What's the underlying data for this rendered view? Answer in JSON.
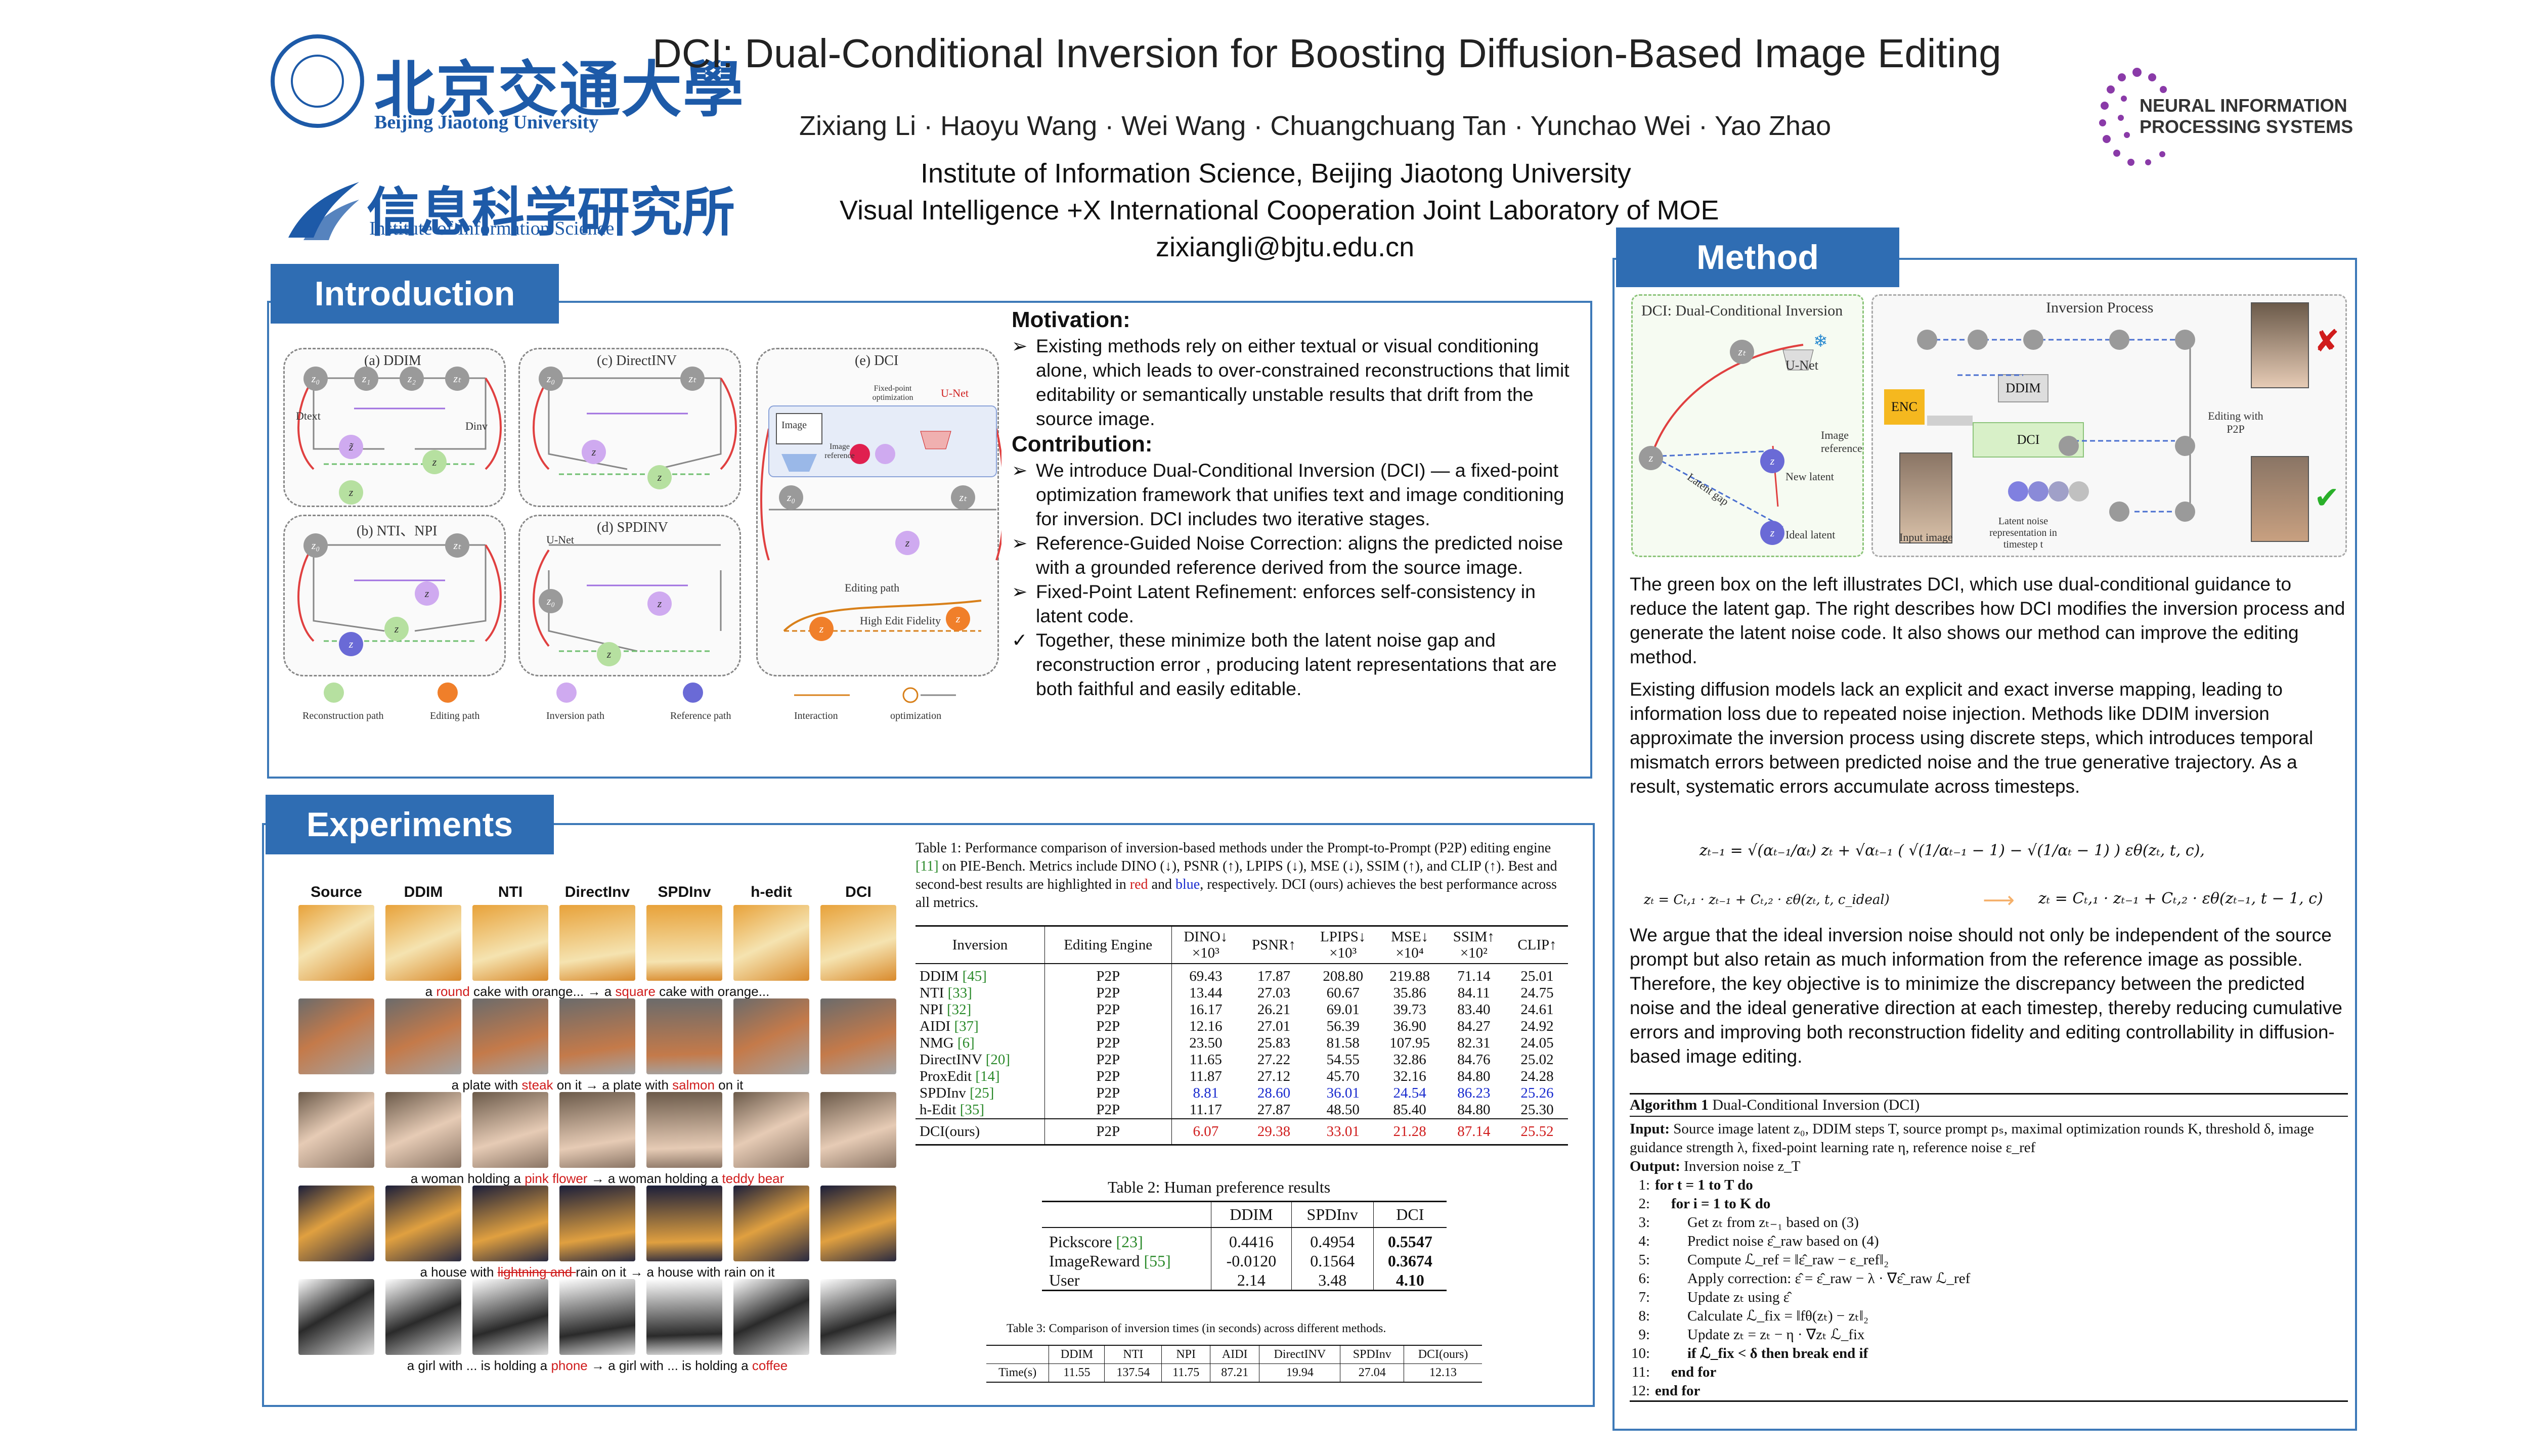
{
  "header": {
    "title": "DCI: Dual-Conditional Inversion for Boosting Diffusion-Based Image Editing",
    "authors": "Zixiang Li · Haoyu Wang · Wei Wang · Chuangchuang Tan · Yunchao Wei · Yao Zhao",
    "affiliation1": "Institute of Information Science, Beijing Jiaotong University",
    "affiliation2": "Visual Intelligence +X International Cooperation Joint Laboratory of MOE",
    "email": "zixiangli@bjtu.edu.cn",
    "logo_bjtu_cn": "北京交通大學",
    "logo_bjtu_en": "Beijing Jiaotong University",
    "logo_iis_cn": "信息科学研究所",
    "logo_iis_en": "Institute of Information Science",
    "logo_neurips_1": "NEURAL INFORMATION",
    "logo_neurips_2": "PROCESSING SYSTEMS"
  },
  "colors": {
    "accent": "#2f6db3",
    "border": "#3d79b8",
    "red": "#d01c1c",
    "blue": "#1a2ccf"
  },
  "introduction": {
    "heading": "Introduction",
    "fig": {
      "a": "(a) DDIM",
      "b": "(b) NTI、NPI",
      "c": "(c) DirectINV",
      "d": "(d) SPDINV",
      "e": "(e) DCI",
      "dtext": "Dtext",
      "dinv": "Dinv",
      "unet": "U-Net",
      "image": "Image",
      "fixed": "Fixed-point optimization",
      "image_ref": "Image reference",
      "edit_path": "Editing path",
      "fidelity": "High Edit Fidelity",
      "legend": [
        "Reconstruction path",
        "Editing path",
        "Inversion path",
        "Reference path",
        "Interaction",
        "optimization"
      ]
    },
    "motivation_title": "Motivation:",
    "motivation": "Existing methods rely on either textual or visual conditioning alone, which leads to over-constrained reconstructions that limit editability or semantically unstable results that drift from the source image.",
    "contribution_title": "Contribution:",
    "contrib": [
      "We introduce Dual-Conditional Inversion (DCI) — a fixed-point optimization framework that unifies text and image conditioning for  inversion. DCI includes two iterative stages.",
      "Reference-Guided Noise Correction: aligns the predicted noise with a grounded reference derived from the source image.",
      "Fixed-Point Latent Refinement: enforces self-consistency in latent code.",
      "Together, these minimize both the latent noise gap and reconstruction error , producing latent representations that are both faithful and easily editable."
    ]
  },
  "experiments": {
    "heading": "Experiments",
    "columns": [
      "Source",
      "DDIM",
      "NTI",
      "DirectInv",
      "SPDInv",
      "h-edit",
      "DCI"
    ],
    "rows": [
      {
        "c": [
          "a ",
          "round",
          " cake with orange... → a ",
          "square",
          " cake with orange..."
        ],
        "colors": [
          "#e8a23a",
          "#f5e3b0",
          "#d98a2c"
        ]
      },
      {
        "c": [
          "a plate with ",
          "steak",
          " on it  → a plate with ",
          "salmon",
          " on it"
        ],
        "colors": [
          "#6b6b6b",
          "#c47a4a",
          "#a4a4a4"
        ]
      },
      {
        "c": [
          "a woman holding a ",
          "pink flower",
          " → a woman holding a ",
          "teddy bear",
          ""
        ],
        "colors": [
          "#6b5a4a",
          "#e6cbb5",
          "#8a7565"
        ]
      },
      {
        "c": [
          "a house with ",
          "lightning and ",
          "rain on it → a house with rain on it",
          "",
          ""
        ],
        "colors": [
          "#1a1e3a",
          "#e0a040",
          "#2a2a40"
        ]
      },
      {
        "c": [
          "a girl with ... is holding a ",
          "phone",
          " → a girl with ... is holding a ",
          "coffee",
          ""
        ],
        "colors": [
          "#ffffff",
          "#2a2a2a",
          "#dddddd"
        ]
      }
    ],
    "table1": {
      "caption_pre": "Table 1: Performance comparison of inversion-based methods under the Prompt-to-Prompt (P2P) editing engine ",
      "caption_ref": "[11]",
      "caption_mid": " on PIE-Bench. Metrics include DINO (↓), PSNR (↑), LPIPS (↓), MSE (↓), SSIM (↑), and CLIP (↑). Best and second-best results are highlighted in ",
      "caption_red": "red",
      "caption_and": " and ",
      "caption_blue": "blue",
      "caption_post": ", respectively. DCI (ours) achieves the best performance across all metrics.",
      "headers": [
        "Inversion",
        "Editing Engine",
        "DINO↓",
        "PSNR↑",
        "LPIPS↓",
        "MSE↓",
        "SSIM↑",
        "CLIP↑"
      ],
      "subheaders": [
        "",
        "",
        "×10³",
        "",
        "×10³",
        "×10⁴",
        "×10²",
        ""
      ],
      "rows": [
        {
          "name": "DDIM",
          "ref": "[45]",
          "v": [
            "P2P",
            "69.43",
            "17.87",
            "208.80",
            "219.88",
            "71.14",
            "25.01"
          ]
        },
        {
          "name": "NTI",
          "ref": "[33]",
          "v": [
            "P2P",
            "13.44",
            "27.03",
            "60.67",
            "35.86",
            "84.11",
            "24.75"
          ]
        },
        {
          "name": "NPI",
          "ref": "[32]",
          "v": [
            "P2P",
            "16.17",
            "26.21",
            "69.01",
            "39.73",
            "83.40",
            "24.61"
          ]
        },
        {
          "name": "AIDI",
          "ref": "[37]",
          "v": [
            "P2P",
            "12.16",
            "27.01",
            "56.39",
            "36.90",
            "84.27",
            "24.92"
          ]
        },
        {
          "name": "NMG",
          "ref": "[6]",
          "v": [
            "P2P",
            "23.50",
            "25.83",
            "81.58",
            "107.95",
            "82.31",
            "24.05"
          ]
        },
        {
          "name": "DirectINV",
          "ref": "[20]",
          "v": [
            "P2P",
            "11.65",
            "27.22",
            "54.55",
            "32.86",
            "84.76",
            "25.02"
          ]
        },
        {
          "name": "ProxEdit",
          "ref": "[14]",
          "v": [
            "P2P",
            "11.87",
            "27.12",
            "45.70",
            "32.16",
            "84.80",
            "24.28"
          ]
        },
        {
          "name": "SPDInv",
          "ref": "[25]",
          "v": [
            "P2P",
            "8.81",
            "28.60",
            "36.01",
            "24.54",
            "86.23",
            "25.26"
          ]
        },
        {
          "name": "h-Edit",
          "ref": "[35]",
          "v": [
            "P2P",
            "11.17",
            "27.87",
            "48.50",
            "85.40",
            "84.80",
            "25.30"
          ]
        }
      ],
      "ours": {
        "name": "DCI(ours)",
        "v": [
          "P2P",
          "6.07",
          "29.38",
          "33.01",
          "21.28",
          "87.14",
          "25.52"
        ]
      }
    },
    "table2": {
      "caption": "Table 2: Human preference results",
      "headers": [
        "",
        "DDIM",
        "SPDInv",
        "DCI"
      ],
      "rows": [
        {
          "name": "Pickscore",
          "ref": "[23]",
          "v": [
            "0.4416",
            "0.4954",
            "0.5547"
          ]
        },
        {
          "name": "ImageReward",
          "ref": "[55]",
          "v": [
            "-0.0120",
            "0.1564",
            "0.3674"
          ]
        },
        {
          "name": "User",
          "ref": "",
          "v": [
            "2.14",
            "3.48",
            "4.10"
          ]
        }
      ]
    },
    "table3": {
      "caption": "Table 3: Comparison of inversion times (in seconds) across different methods.",
      "headers": [
        "",
        "DDIM",
        "NTI",
        "NPI",
        "AIDI",
        "DirectINV",
        "SPDInv",
        "DCI(ours)"
      ],
      "row": [
        "Time(s)",
        "11.55",
        "137.54",
        "11.75",
        "87.21",
        "19.94",
        "27.04",
        "12.13"
      ]
    }
  },
  "method": {
    "heading": "Method",
    "fig": {
      "left_title": "DCI: Dual-Conditional Inversion",
      "unet": "U-Net",
      "image_ref": "Image reference",
      "new_latent": "New latent",
      "latent_gap": "Latent gap",
      "ideal_latent": "Ideal latent",
      "right_title": "Inversion Process",
      "enc": "ENC",
      "ddim": "DDIM",
      "dci": "DCI",
      "input_image": "Input image",
      "latent_repr": "Latent noise representation in timestep t",
      "editing": "Editing with P2P"
    },
    "para1": "The green box on the left illustrates DCI, which use dual-conditional guidance to reduce the latent gap. The right describes how DCI modifies the inversion process and generate the latent noise code. It also shows our method can improve the editing method.",
    "para2": "Existing diffusion models lack an explicit and exact inverse mapping, leading to information loss due to repeated noise injection. Methods like DDIM inversion approximate the inversion process using discrete steps, which introduces temporal mismatch errors between predicted noise and the true generative trajectory. As a result, systematic errors accumulate across timesteps.",
    "eq1": "zₜ₋₁ = √(αₜ₋₁/αₜ) zₜ + √αₜ₋₁ ( √(1/αₜ₋₁ − 1) − √(1/αₜ − 1) ) εθ(zₜ, t, c),",
    "eq2_left": "zₜ = Cₜ,₁ · zₜ₋₁ + Cₜ,₂ · εθ(zₜ, t, c_ideal)",
    "eq2_right": "zₜ = Cₜ,₁ · zₜ₋₁ + Cₜ,₂ · εθ(zₜ₋₁, t − 1, c)",
    "para3": "We argue that the ideal inversion noise should not only be independent of the source prompt but also retain as much information from the reference image as possible. Therefore, the key objective is to minimize the discrepancy between the predicted noise and the ideal generative direction at each timestep, thereby reducing cumulative errors and improving both reconstruction fidelity and editing controllability in diffusion-based image editing.",
    "algo": {
      "title_b": "Algorithm 1",
      "title": " Dual-Conditional Inversion (DCI)",
      "input_b": "Input:",
      "input": " Source image latent z₀, DDIM steps T, source prompt pₛ, maximal optimization rounds K, threshold δ, image guidance strength λ, fixed-point learning rate η, reference noise ε_ref",
      "output_b": "Output:",
      "output": " Inversion noise z_T",
      "lines": [
        {
          "n": "1:",
          "ind": 1,
          "t": "for t = 1 to T do"
        },
        {
          "n": "2:",
          "ind": 2,
          "t": "for i = 1 to K do"
        },
        {
          "n": "3:",
          "ind": 3,
          "t": "Get zₜ from zₜ₋₁ based on (3)"
        },
        {
          "n": "4:",
          "ind": 3,
          "t": "Predict noise ε̂_raw based on (4)"
        },
        {
          "n": "5:",
          "ind": 3,
          "t": "Compute ℒ_ref = ‖ε̂_raw − ε_ref‖₂"
        },
        {
          "n": "6:",
          "ind": 3,
          "t": "Apply correction: ε̂ = ε̂_raw − λ · ∇ε̂_raw ℒ_ref"
        },
        {
          "n": "7:",
          "ind": 3,
          "t": "Update zₜ using ε̂"
        },
        {
          "n": "8:",
          "ind": 3,
          "t": "Calculate ℒ_fix = ‖fθ(zₜ) − zₜ‖₂"
        },
        {
          "n": "9:",
          "ind": 3,
          "t": "Update zₜ = zₜ − η · ∇zₜ ℒ_fix"
        },
        {
          "n": "10:",
          "ind": 3,
          "t": "if ℒ_fix < δ then break end if"
        },
        {
          "n": "11:",
          "ind": 2,
          "t": "end for"
        },
        {
          "n": "12:",
          "ind": 1,
          "t": "end for"
        }
      ]
    }
  }
}
